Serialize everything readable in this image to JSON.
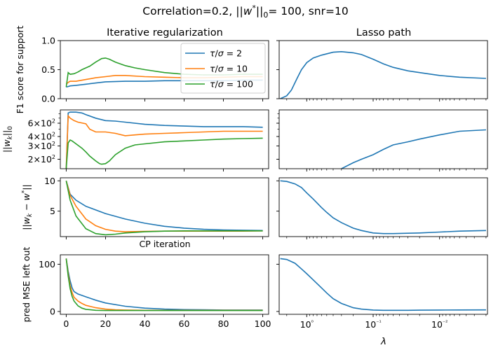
{
  "suptitle": "Correlation=0.2, ||w*||₀= 100, snr=10",
  "colors": {
    "tau2": "#1f77b4",
    "tau10": "#ff7f0e",
    "tau100": "#2ca02c"
  },
  "chart_data": {
    "type": "line",
    "columns": [
      {
        "title": "Iterative regularization",
        "xlabel": "CP iteration",
        "xlim": [
          -3,
          103
        ],
        "xticks": [
          0,
          20,
          40,
          60,
          80,
          100
        ],
        "xticklabels": [
          "0",
          "20",
          "40",
          "60",
          "80",
          "100"
        ]
      },
      {
        "title": "Lasso path",
        "xlabel": "λ",
        "xscale": "log-reversed",
        "xlim": [
          2.6,
          0.0019
        ],
        "xticks": [
          1,
          0.1,
          0.01
        ],
        "xticklabels": [
          "10⁰",
          "10⁻¹",
          "10⁻²"
        ]
      }
    ],
    "legend": {
      "location": "upper-right of top-left panel",
      "entries": [
        "τ/σ = 2",
        "τ/σ = 10",
        "τ/σ = 100"
      ]
    },
    "rows": [
      {
        "ylabel": "F1 score for support",
        "yscale": "linear",
        "ylim": [
          0,
          1
        ],
        "yticks": [
          0,
          0.5,
          1
        ],
        "yticklabels": [
          "0.0",
          "0.5",
          "1.0"
        ],
        "iterative": [
          {
            "name": "τ/σ = 2",
            "color": "#1f77b4",
            "x": [
              0,
              1,
              2,
              5,
              10,
              15,
              20,
              30,
              40,
              50,
              60,
              70,
              80,
              90,
              100
            ],
            "y": [
              0.2,
              0.21,
              0.22,
              0.23,
              0.25,
              0.27,
              0.29,
              0.3,
              0.3,
              0.31,
              0.31,
              0.31,
              0.31,
              0.32,
              0.32
            ]
          },
          {
            "name": "τ/σ = 10",
            "color": "#ff7f0e",
            "x": [
              0,
              1,
              2,
              5,
              10,
              15,
              20,
              25,
              30,
              40,
              50,
              60,
              70,
              80,
              90,
              100
            ],
            "y": [
              0.25,
              0.28,
              0.3,
              0.3,
              0.33,
              0.36,
              0.38,
              0.4,
              0.4,
              0.38,
              0.37,
              0.36,
              0.36,
              0.37,
              0.38,
              0.38
            ]
          },
          {
            "name": "τ/σ = 100",
            "color": "#2ca02c",
            "x": [
              0,
              1,
              2,
              4,
              6,
              8,
              10,
              12,
              15,
              17,
              18,
              20,
              22,
              25,
              30,
              35,
              40,
              50,
              60,
              70,
              80,
              90,
              100
            ],
            "y": [
              0.2,
              0.45,
              0.42,
              0.43,
              0.46,
              0.5,
              0.53,
              0.56,
              0.63,
              0.67,
              0.69,
              0.7,
              0.68,
              0.63,
              0.57,
              0.53,
              0.5,
              0.45,
              0.42,
              0.41,
              0.41,
              0.42,
              0.42
            ]
          }
        ],
        "lasso": {
          "color": "#1f77b4",
          "lambda": [
            2.5,
            2.0,
            1.7,
            1.4,
            1.2,
            1.0,
            0.8,
            0.6,
            0.4,
            0.3,
            0.2,
            0.15,
            0.1,
            0.07,
            0.05,
            0.03,
            0.02,
            0.01,
            0.005,
            0.002
          ],
          "y": [
            0.0,
            0.05,
            0.15,
            0.35,
            0.5,
            0.62,
            0.7,
            0.75,
            0.8,
            0.81,
            0.79,
            0.76,
            0.68,
            0.6,
            0.54,
            0.48,
            0.45,
            0.4,
            0.37,
            0.35
          ]
        }
      },
      {
        "ylabel": "||w_k||₀",
        "yscale": "log",
        "ylim": [
          150,
          900
        ],
        "yticks": [
          200,
          300,
          400,
          600
        ],
        "yticklabels": [
          "2×10²",
          "3×10²",
          "4×10²",
          "6×10²"
        ],
        "iterative": [
          {
            "name": "τ/σ = 2",
            "color": "#1f77b4",
            "x": [
              0,
              1,
              2,
              5,
              8,
              10,
              15,
              20,
              25,
              30,
              40,
              50,
              60,
              70,
              80,
              90,
              100
            ],
            "y": [
              150,
              820,
              840,
              840,
              820,
              780,
              700,
              650,
              640,
              620,
              580,
              560,
              550,
              540,
              540,
              540,
              530
            ]
          },
          {
            "name": "τ/σ = 10",
            "color": "#ff7f0e",
            "x": [
              0,
              1,
              2,
              4,
              6,
              10,
              12,
              15,
              20,
              25,
              30,
              35,
              40,
              50,
              60,
              70,
              80,
              90,
              100
            ],
            "y": [
              150,
              750,
              700,
              650,
              620,
              590,
              500,
              460,
              460,
              440,
              410,
              420,
              430,
              440,
              450,
              460,
              470,
              470,
              470
            ]
          },
          {
            "name": "τ/σ = 100",
            "color": "#2ca02c",
            "x": [
              0,
              1,
              2,
              3,
              5,
              8,
              10,
              12,
              15,
              17,
              18,
              20,
              22,
              25,
              30,
              35,
              40,
              50,
              60,
              70,
              80,
              90,
              100
            ],
            "y": [
              150,
              330,
              360,
              350,
              320,
              280,
              250,
              220,
              190,
              175,
              172,
              175,
              190,
              230,
              280,
              310,
              320,
              340,
              350,
              360,
              370,
              375,
              380
            ]
          }
        ],
        "lasso": {
          "color": "#1f77b4",
          "lambda": [
            0.3,
            0.2,
            0.15,
            0.1,
            0.07,
            0.05,
            0.03,
            0.02,
            0.01,
            0.005,
            0.002
          ],
          "y": [
            150,
            180,
            200,
            230,
            270,
            310,
            340,
            370,
            420,
            470,
            490
          ]
        }
      },
      {
        "ylabel": "||w_k − w*||",
        "yscale": "linear",
        "ylim": [
          0.8,
          10.5
        ],
        "yticks": [
          5,
          10
        ],
        "yticklabels": [
          "5",
          "10"
        ],
        "iterative": [
          {
            "name": "τ/σ = 2",
            "color": "#1f77b4",
            "x": [
              0,
              2,
              5,
              10,
              20,
              30,
              40,
              50,
              60,
              70,
              80,
              90,
              100
            ],
            "y": [
              10,
              7.8,
              6.8,
              5.8,
              4.6,
              3.7,
              3.0,
              2.5,
              2.2,
              2.0,
              1.9,
              1.85,
              1.8
            ]
          },
          {
            "name": "τ/σ = 10",
            "color": "#ff7f0e",
            "x": [
              0,
              2,
              5,
              10,
              15,
              20,
              25,
              30,
              40,
              50,
              60,
              70,
              80,
              90,
              100
            ],
            "y": [
              10,
              7.6,
              5.8,
              3.7,
              2.6,
              2.0,
              1.7,
              1.6,
              1.65,
              1.7,
              1.7,
              1.7,
              1.7,
              1.7,
              1.75
            ]
          },
          {
            "name": "τ/σ = 100",
            "color": "#2ca02c",
            "x": [
              0,
              2,
              5,
              10,
              15,
              20,
              25,
              30,
              40,
              50,
              60,
              70,
              80,
              90,
              100
            ],
            "y": [
              10,
              6.8,
              4.2,
              2.1,
              1.3,
              1.1,
              1.2,
              1.4,
              1.6,
              1.7,
              1.75,
              1.75,
              1.75,
              1.75,
              1.75
            ]
          }
        ],
        "lasso": {
          "color": "#1f77b4",
          "lambda": [
            2.5,
            2.0,
            1.5,
            1.2,
            1.0,
            0.8,
            0.6,
            0.5,
            0.4,
            0.3,
            0.2,
            0.15,
            0.1,
            0.07,
            0.05,
            0.03,
            0.02,
            0.01,
            0.005,
            0.002
          ],
          "y": [
            10,
            9.9,
            9.5,
            8.9,
            8.0,
            7.0,
            5.6,
            4.8,
            3.9,
            3.1,
            2.2,
            1.8,
            1.4,
            1.3,
            1.3,
            1.35,
            1.4,
            1.55,
            1.7,
            1.8
          ]
        }
      },
      {
        "ylabel": "pred MSE left out",
        "yscale": "linear",
        "ylim": [
          -6,
          120
        ],
        "yticks": [
          0,
          100
        ],
        "yticklabels": [
          "0",
          "100"
        ],
        "iterative": [
          {
            "name": "τ/σ = 2",
            "color": "#1f77b4",
            "x": [
              0,
              1,
              2,
              3,
              4,
              6,
              8,
              10,
              15,
              20,
              30,
              40,
              50,
              60,
              70,
              80,
              90,
              100
            ],
            "y": [
              112,
              85,
              65,
              50,
              42,
              37,
              34,
              31,
              24,
              18,
              11,
              7,
              5,
              4,
              3.5,
              3,
              3,
              3
            ]
          },
          {
            "name": "τ/σ = 10",
            "color": "#ff7f0e",
            "x": [
              0,
              1,
              2,
              3,
              4,
              6,
              8,
              10,
              15,
              20,
              25,
              30,
              40,
              60,
              80,
              100
            ],
            "y": [
              112,
              80,
              55,
              40,
              30,
              22,
              17,
              13,
              8,
              5,
              3.5,
              3,
              2.5,
              2.5,
              2.5,
              2.5
            ]
          },
          {
            "name": "τ/σ = 100",
            "color": "#2ca02c",
            "x": [
              0,
              1,
              2,
              3,
              4,
              6,
              8,
              10,
              15,
              20,
              30,
              50,
              100
            ],
            "y": [
              112,
              75,
              48,
              32,
              22,
              12,
              7,
              4.5,
              2.5,
              2,
              2,
              2,
              2
            ]
          }
        ],
        "lasso": {
          "color": "#1f77b4",
          "lambda": [
            2.5,
            2.0,
            1.5,
            1.2,
            1.0,
            0.8,
            0.6,
            0.5,
            0.4,
            0.3,
            0.2,
            0.15,
            0.1,
            0.07,
            0.05,
            0.03,
            0.02,
            0.01,
            0.005,
            0.002
          ],
          "y": [
            112,
            110,
            102,
            90,
            80,
            67,
            50,
            39,
            27,
            17,
            8,
            5,
            3,
            2.5,
            2.5,
            2.5,
            2.8,
            3,
            3.2,
            3.3
          ]
        }
      }
    ]
  }
}
